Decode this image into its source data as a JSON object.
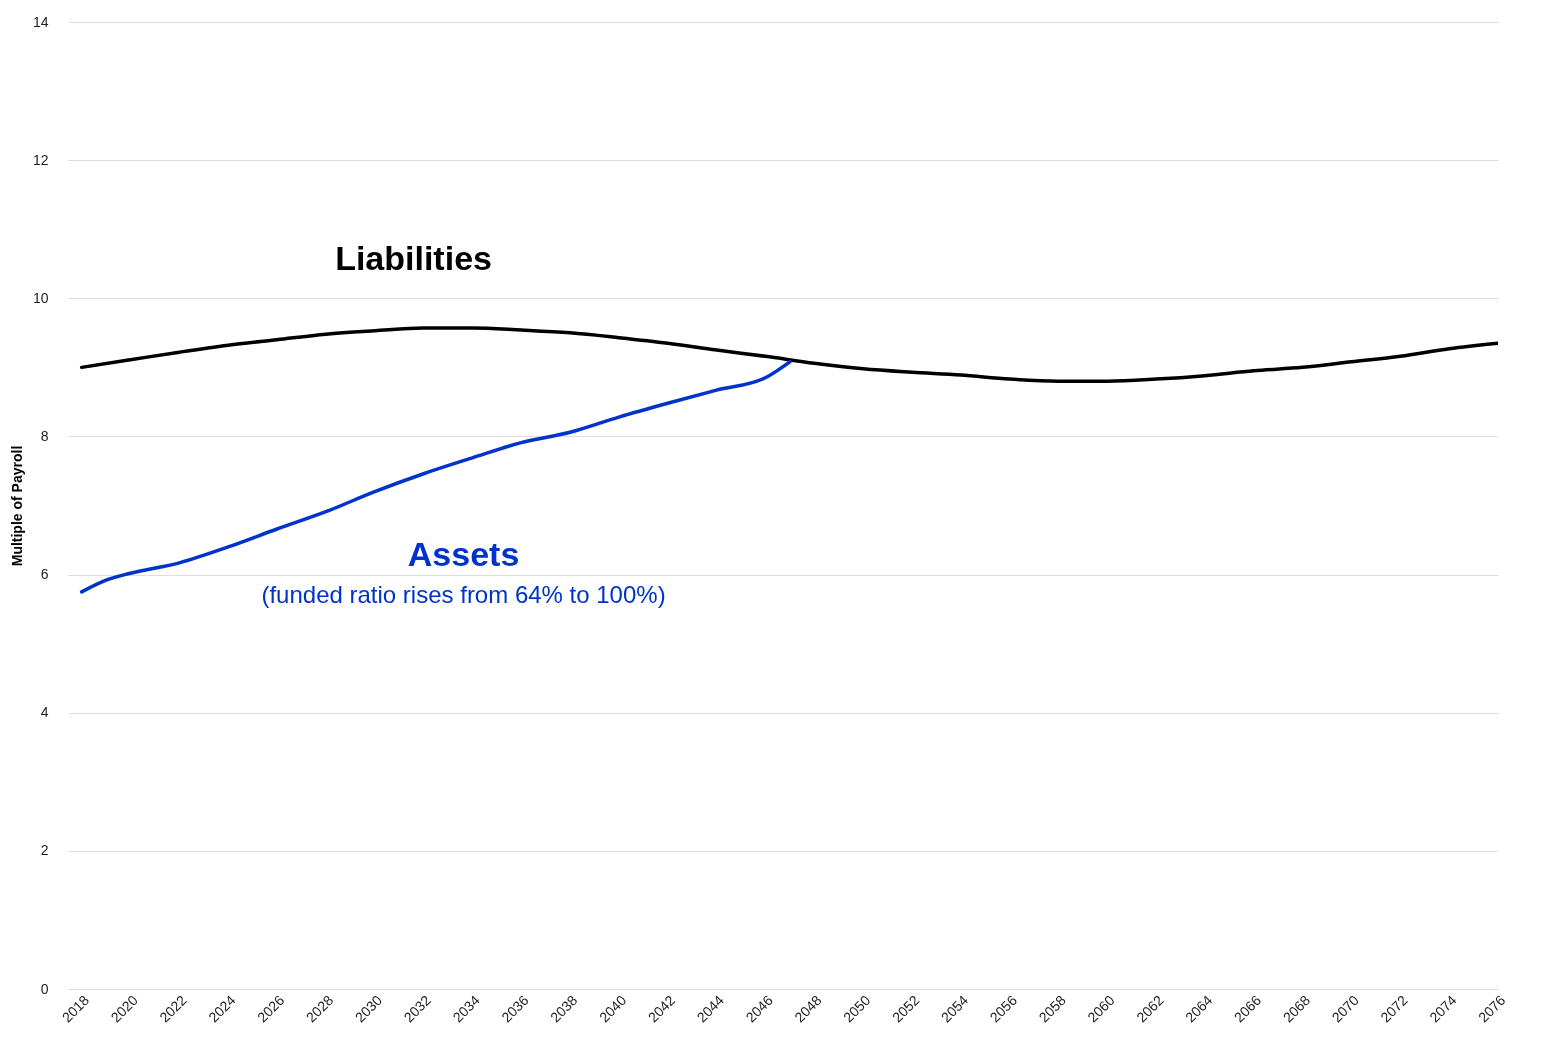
{
  "chart_data": {
    "type": "line",
    "ylabel": "Multiple of Payroll",
    "xlim": [
      2017.44,
      2076
    ],
    "xticks": [
      2018,
      2020,
      2022,
      2024,
      2026,
      2028,
      2030,
      2032,
      2034,
      2036,
      2038,
      2040,
      2042,
      2044,
      2046,
      2048,
      2050,
      2052,
      2054,
      2056,
      2058,
      2060,
      2062,
      2064,
      2066,
      2068,
      2070,
      2072,
      2074,
      2076
    ],
    "ylim": [
      0,
      14
    ],
    "yticks": [
      0,
      2,
      4,
      6,
      8,
      10,
      12,
      14
    ],
    "grid": "y",
    "line_style": "solid",
    "series": [
      {
        "name": "Liabilities",
        "color": "#000000",
        "x": [
          2018,
          2020,
          2022,
          2024,
          2026,
          2028,
          2030,
          2032,
          2034,
          2036,
          2038,
          2040,
          2042,
          2044,
          2046,
          2048,
          2050,
          2052,
          2054,
          2056,
          2058,
          2060,
          2062,
          2064,
          2066,
          2068,
          2070,
          2072,
          2074,
          2076
        ],
        "values": [
          9.0,
          9.11,
          9.22,
          9.32,
          9.4,
          9.48,
          9.53,
          9.57,
          9.57,
          9.54,
          9.5,
          9.43,
          9.35,
          9.25,
          9.16,
          9.06,
          8.98,
          8.93,
          8.89,
          8.83,
          8.8,
          8.8,
          8.83,
          8.88,
          8.95,
          9.0,
          9.08,
          9.16,
          9.27,
          9.35
        ]
      },
      {
        "name": "Assets",
        "color": "#0033cc",
        "x": [
          2018,
          2019,
          2020,
          2022,
          2024,
          2026,
          2028,
          2030,
          2032,
          2034,
          2036,
          2038,
          2040,
          2042,
          2044,
          2046,
          2047
        ],
        "values": [
          5.75,
          5.92,
          6.02,
          6.17,
          6.4,
          6.66,
          6.91,
          7.2,
          7.46,
          7.69,
          7.91,
          8.06,
          8.28,
          8.48,
          8.67,
          8.85,
          9.08
        ]
      }
    ],
    "annotations": [
      "(funded  ratio rises from 64% to 100%)"
    ]
  }
}
